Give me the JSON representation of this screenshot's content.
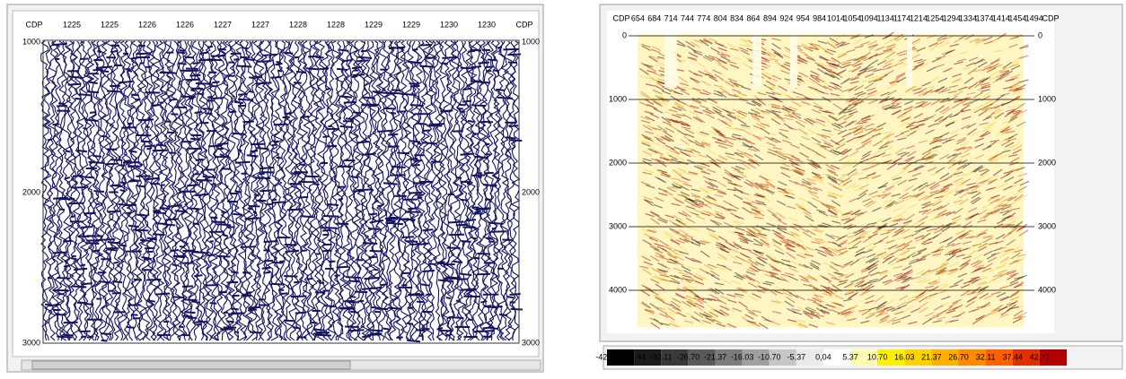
{
  "left_panel": {
    "header": [
      "CDP",
      "1225",
      "1225",
      "1226",
      "1226",
      "1227",
      "1227",
      "1228",
      "1228",
      "1229",
      "1229",
      "1230",
      "1230",
      "CDP"
    ],
    "depth_left": [
      "1000",
      "2000",
      "3000"
    ],
    "depth_right": [
      "1000",
      "2000",
      "3000"
    ]
  },
  "right_panel": {
    "header": [
      "CDP",
      "654",
      "684",
      "714",
      "744",
      "774",
      "804",
      "834",
      "864",
      "894",
      "924",
      "954",
      "984",
      "1014",
      "1054",
      "1094",
      "1134",
      "1174",
      "1214",
      "1254",
      "1294",
      "1334",
      "1374",
      "1414",
      "1454",
      "1494",
      "CDP"
    ],
    "depth_left": [
      "0",
      "1000",
      "2000",
      "3000",
      "4000"
    ],
    "depth_right": [
      "0",
      "1000",
      "2000",
      "3000",
      "4000"
    ],
    "colorbar": [
      "-42.77",
      "-37.44",
      "-32.11",
      "-26.70",
      "-21.37",
      "-16.03",
      "-10.70",
      "-5.37",
      "0,04",
      "5.37",
      "10.70",
      "16.03",
      "21.37",
      "26.70",
      "32.11",
      "37.44",
      "42.77"
    ]
  }
}
